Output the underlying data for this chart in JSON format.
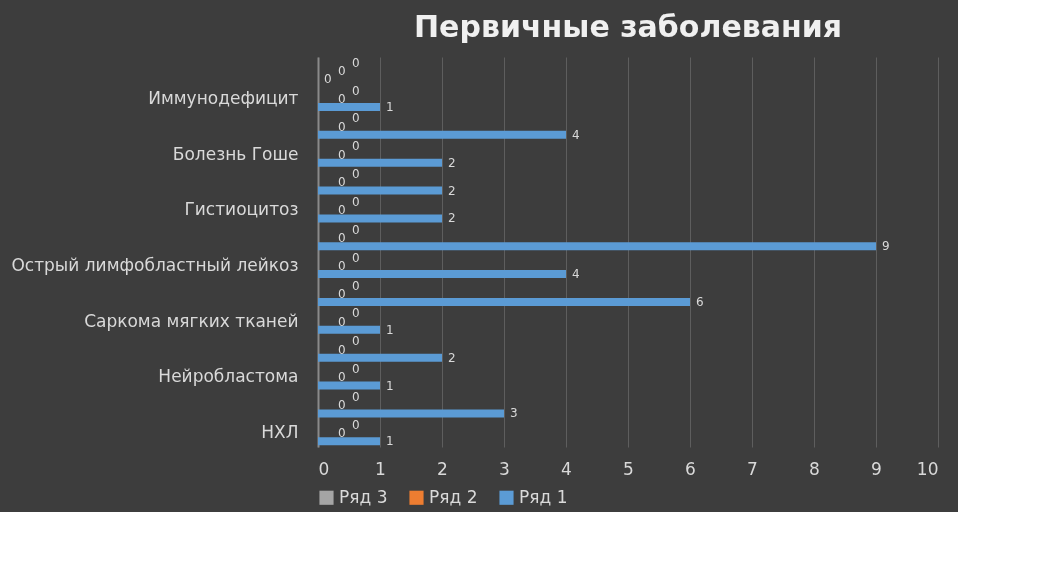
{
  "chart_data": {
    "type": "bar",
    "orientation": "horizontal",
    "title": "Первичные заболевания",
    "categories": [
      null,
      "Иммунодефицит",
      null,
      "Болезнь Гоше",
      null,
      "Гистиоцитоз",
      null,
      "Острый лимфобластный лейкоз",
      null,
      "Саркома мягких тканей",
      null,
      "Нейробластома",
      null,
      "НХЛ"
    ],
    "series": [
      {
        "name": "Ряд 1",
        "color": "#5b9bd5",
        "values": [
          0,
          1,
          4,
          2,
          2,
          2,
          9,
          4,
          6,
          1,
          2,
          1,
          3,
          1
        ]
      },
      {
        "name": "Ряд 2",
        "color": "#ed7d31",
        "values": [
          0,
          0,
          0,
          0,
          0,
          0,
          0,
          0,
          0,
          0,
          0,
          0,
          0,
          0
        ]
      },
      {
        "name": "Ряд 3",
        "color": "#a5a5a5",
        "values": [
          0,
          0,
          0,
          0,
          0,
          0,
          0,
          0,
          0,
          0,
          0,
          0,
          0,
          0
        ]
      }
    ],
    "xlim": [
      0,
      10
    ],
    "xticks": [
      0,
      1,
      2,
      3,
      4,
      5,
      6,
      7,
      8,
      9,
      10
    ],
    "grid": "x",
    "legend": "bottom",
    "data_labels": true
  }
}
